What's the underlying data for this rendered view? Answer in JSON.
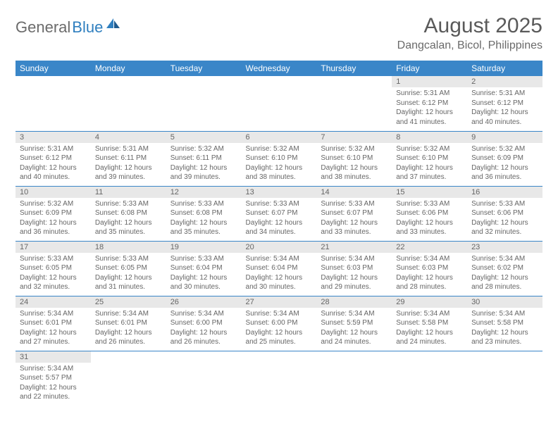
{
  "logo": {
    "part1": "General",
    "part2": "Blue"
  },
  "title": "August 2025",
  "location": "Dangcalan, Bicol, Philippines",
  "colors": {
    "header_bg": "#3a86c8",
    "header_text": "#ffffff",
    "daynum_bg": "#e8e8e8",
    "text": "#666666",
    "rule": "#3a86c8",
    "logo_gray": "#6b6b6b",
    "logo_blue": "#2f7fbf"
  },
  "weekdays": [
    "Sunday",
    "Monday",
    "Tuesday",
    "Wednesday",
    "Thursday",
    "Friday",
    "Saturday"
  ],
  "weeks": [
    [
      null,
      null,
      null,
      null,
      null,
      {
        "n": "1",
        "sr": "Sunrise: 5:31 AM",
        "ss": "Sunset: 6:12 PM",
        "d1": "Daylight: 12 hours",
        "d2": "and 41 minutes."
      },
      {
        "n": "2",
        "sr": "Sunrise: 5:31 AM",
        "ss": "Sunset: 6:12 PM",
        "d1": "Daylight: 12 hours",
        "d2": "and 40 minutes."
      }
    ],
    [
      {
        "n": "3",
        "sr": "Sunrise: 5:31 AM",
        "ss": "Sunset: 6:12 PM",
        "d1": "Daylight: 12 hours",
        "d2": "and 40 minutes."
      },
      {
        "n": "4",
        "sr": "Sunrise: 5:31 AM",
        "ss": "Sunset: 6:11 PM",
        "d1": "Daylight: 12 hours",
        "d2": "and 39 minutes."
      },
      {
        "n": "5",
        "sr": "Sunrise: 5:32 AM",
        "ss": "Sunset: 6:11 PM",
        "d1": "Daylight: 12 hours",
        "d2": "and 39 minutes."
      },
      {
        "n": "6",
        "sr": "Sunrise: 5:32 AM",
        "ss": "Sunset: 6:10 PM",
        "d1": "Daylight: 12 hours",
        "d2": "and 38 minutes."
      },
      {
        "n": "7",
        "sr": "Sunrise: 5:32 AM",
        "ss": "Sunset: 6:10 PM",
        "d1": "Daylight: 12 hours",
        "d2": "and 38 minutes."
      },
      {
        "n": "8",
        "sr": "Sunrise: 5:32 AM",
        "ss": "Sunset: 6:10 PM",
        "d1": "Daylight: 12 hours",
        "d2": "and 37 minutes."
      },
      {
        "n": "9",
        "sr": "Sunrise: 5:32 AM",
        "ss": "Sunset: 6:09 PM",
        "d1": "Daylight: 12 hours",
        "d2": "and 36 minutes."
      }
    ],
    [
      {
        "n": "10",
        "sr": "Sunrise: 5:32 AM",
        "ss": "Sunset: 6:09 PM",
        "d1": "Daylight: 12 hours",
        "d2": "and 36 minutes."
      },
      {
        "n": "11",
        "sr": "Sunrise: 5:33 AM",
        "ss": "Sunset: 6:08 PM",
        "d1": "Daylight: 12 hours",
        "d2": "and 35 minutes."
      },
      {
        "n": "12",
        "sr": "Sunrise: 5:33 AM",
        "ss": "Sunset: 6:08 PM",
        "d1": "Daylight: 12 hours",
        "d2": "and 35 minutes."
      },
      {
        "n": "13",
        "sr": "Sunrise: 5:33 AM",
        "ss": "Sunset: 6:07 PM",
        "d1": "Daylight: 12 hours",
        "d2": "and 34 minutes."
      },
      {
        "n": "14",
        "sr": "Sunrise: 5:33 AM",
        "ss": "Sunset: 6:07 PM",
        "d1": "Daylight: 12 hours",
        "d2": "and 33 minutes."
      },
      {
        "n": "15",
        "sr": "Sunrise: 5:33 AM",
        "ss": "Sunset: 6:06 PM",
        "d1": "Daylight: 12 hours",
        "d2": "and 33 minutes."
      },
      {
        "n": "16",
        "sr": "Sunrise: 5:33 AM",
        "ss": "Sunset: 6:06 PM",
        "d1": "Daylight: 12 hours",
        "d2": "and 32 minutes."
      }
    ],
    [
      {
        "n": "17",
        "sr": "Sunrise: 5:33 AM",
        "ss": "Sunset: 6:05 PM",
        "d1": "Daylight: 12 hours",
        "d2": "and 32 minutes."
      },
      {
        "n": "18",
        "sr": "Sunrise: 5:33 AM",
        "ss": "Sunset: 6:05 PM",
        "d1": "Daylight: 12 hours",
        "d2": "and 31 minutes."
      },
      {
        "n": "19",
        "sr": "Sunrise: 5:33 AM",
        "ss": "Sunset: 6:04 PM",
        "d1": "Daylight: 12 hours",
        "d2": "and 30 minutes."
      },
      {
        "n": "20",
        "sr": "Sunrise: 5:34 AM",
        "ss": "Sunset: 6:04 PM",
        "d1": "Daylight: 12 hours",
        "d2": "and 30 minutes."
      },
      {
        "n": "21",
        "sr": "Sunrise: 5:34 AM",
        "ss": "Sunset: 6:03 PM",
        "d1": "Daylight: 12 hours",
        "d2": "and 29 minutes."
      },
      {
        "n": "22",
        "sr": "Sunrise: 5:34 AM",
        "ss": "Sunset: 6:03 PM",
        "d1": "Daylight: 12 hours",
        "d2": "and 28 minutes."
      },
      {
        "n": "23",
        "sr": "Sunrise: 5:34 AM",
        "ss": "Sunset: 6:02 PM",
        "d1": "Daylight: 12 hours",
        "d2": "and 28 minutes."
      }
    ],
    [
      {
        "n": "24",
        "sr": "Sunrise: 5:34 AM",
        "ss": "Sunset: 6:01 PM",
        "d1": "Daylight: 12 hours",
        "d2": "and 27 minutes."
      },
      {
        "n": "25",
        "sr": "Sunrise: 5:34 AM",
        "ss": "Sunset: 6:01 PM",
        "d1": "Daylight: 12 hours",
        "d2": "and 26 minutes."
      },
      {
        "n": "26",
        "sr": "Sunrise: 5:34 AM",
        "ss": "Sunset: 6:00 PM",
        "d1": "Daylight: 12 hours",
        "d2": "and 26 minutes."
      },
      {
        "n": "27",
        "sr": "Sunrise: 5:34 AM",
        "ss": "Sunset: 6:00 PM",
        "d1": "Daylight: 12 hours",
        "d2": "and 25 minutes."
      },
      {
        "n": "28",
        "sr": "Sunrise: 5:34 AM",
        "ss": "Sunset: 5:59 PM",
        "d1": "Daylight: 12 hours",
        "d2": "and 24 minutes."
      },
      {
        "n": "29",
        "sr": "Sunrise: 5:34 AM",
        "ss": "Sunset: 5:58 PM",
        "d1": "Daylight: 12 hours",
        "d2": "and 24 minutes."
      },
      {
        "n": "30",
        "sr": "Sunrise: 5:34 AM",
        "ss": "Sunset: 5:58 PM",
        "d1": "Daylight: 12 hours",
        "d2": "and 23 minutes."
      }
    ],
    [
      {
        "n": "31",
        "sr": "Sunrise: 5:34 AM",
        "ss": "Sunset: 5:57 PM",
        "d1": "Daylight: 12 hours",
        "d2": "and 22 minutes."
      },
      null,
      null,
      null,
      null,
      null,
      null
    ]
  ]
}
